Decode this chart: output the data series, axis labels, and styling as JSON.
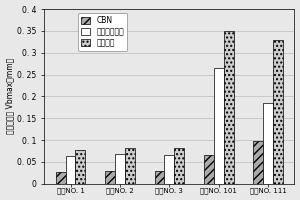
{
  "groups": [
    "样品NO. 1",
    "样品NO. 2",
    "样品NO. 3",
    "样品NO. 101",
    "样品NO. 111"
  ],
  "series": [
    {
      "label": "CBN",
      "values": [
        0.027,
        0.03,
        0.03,
        0.065,
        0.097
      ],
      "hatch": "////",
      "facecolor": "#aaaaaa",
      "edgecolor": "#000000"
    },
    {
      "label": "烧结硬质合金",
      "values": [
        0.063,
        0.068,
        0.065,
        0.265,
        0.185
      ],
      "hatch": "",
      "facecolor": "#ffffff",
      "edgecolor": "#000000"
    },
    {
      "label": "金属陶瓷",
      "values": [
        0.078,
        0.082,
        0.082,
        0.35,
        0.328
      ],
      "hatch": "....",
      "facecolor": "#cccccc",
      "edgecolor": "#000000"
    }
  ],
  "ylabel": "刃口磨损量 Vbmax（mm）",
  "ylim": [
    0,
    0.4
  ],
  "yticks": [
    0,
    0.05,
    0.1,
    0.15,
    0.2,
    0.25,
    0.3,
    0.35,
    0.4
  ],
  "ytick_labels": [
    "0",
    "0. 05",
    "0. 1",
    "0. 15",
    "0. 2",
    "0. 25",
    "0. 3",
    "0. 35",
    "0. 4"
  ],
  "background_color": "#e8e8e8",
  "legend_loc": "upper left",
  "bar_width": 0.2,
  "fontsize_ticks": 5.5,
  "fontsize_ylabel": 5.5,
  "fontsize_legend": 5.5,
  "fontsize_xlabel": 5.0
}
